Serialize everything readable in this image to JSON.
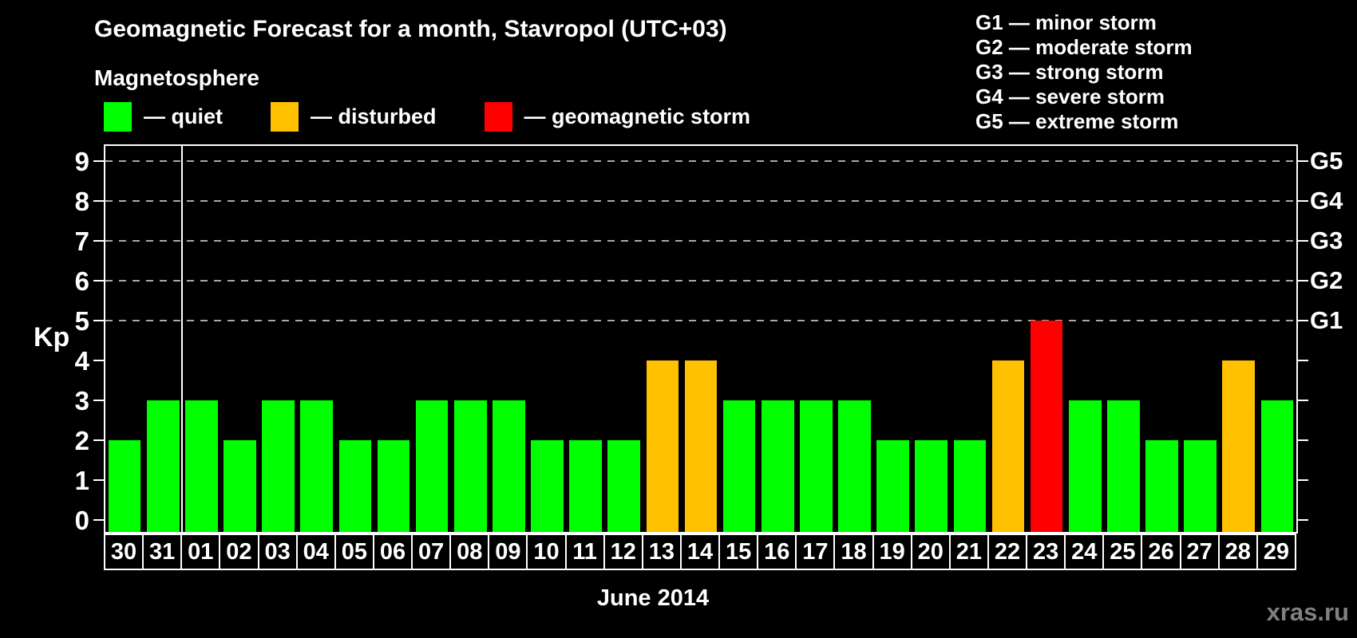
{
  "title": "Geomagnetic Forecast for a month, Stavropol (UTC+03)",
  "subtitle": "Magnetosphere",
  "magnetosphere_legend": [
    {
      "status": "quiet",
      "color": "#00FF00",
      "label": "— quiet"
    },
    {
      "status": "disturbed",
      "color": "#FFC000",
      "label": "— disturbed"
    },
    {
      "status": "storm",
      "color": "#FF0000",
      "label": "— geomagnetic storm"
    }
  ],
  "storm_scale_legend": [
    "G1 — minor storm",
    "G2 — moderate storm",
    "G3 — strong storm",
    "G4 — severe storm",
    "G5 — extreme storm"
  ],
  "watermark": "xras.ru",
  "chart_data": {
    "type": "bar",
    "title": "Geomagnetic Forecast for a month, Stavropol (UTC+03)",
    "xlabel": "June 2014",
    "ylabel": "Kp",
    "ylim": [
      0,
      9
    ],
    "yticks": [
      0,
      1,
      2,
      3,
      4,
      5,
      6,
      7,
      8,
      9
    ],
    "grid": "horizontal dashed lines at Kp 5-9 (G1-G5 levels)",
    "gridlines_at": [
      5,
      6,
      7,
      8,
      9
    ],
    "right_axis_labels": [
      {
        "value": 5,
        "label": "G1"
      },
      {
        "value": 6,
        "label": "G2"
      },
      {
        "value": 7,
        "label": "G3"
      },
      {
        "value": 8,
        "label": "G4"
      },
      {
        "value": 9,
        "label": "G5"
      }
    ],
    "month_separator_after_index": 1,
    "categories": [
      "30",
      "31",
      "01",
      "02",
      "03",
      "04",
      "05",
      "06",
      "07",
      "08",
      "09",
      "10",
      "11",
      "12",
      "13",
      "14",
      "15",
      "16",
      "17",
      "18",
      "19",
      "20",
      "21",
      "22",
      "23",
      "24",
      "25",
      "26",
      "27",
      "28",
      "29"
    ],
    "values": [
      2,
      3,
      3,
      2,
      3,
      3,
      2,
      2,
      3,
      3,
      3,
      2,
      2,
      2,
      4,
      4,
      3,
      3,
      3,
      3,
      2,
      2,
      2,
      4,
      5,
      3,
      3,
      2,
      2,
      4,
      3
    ],
    "statuses": [
      "quiet",
      "quiet",
      "quiet",
      "quiet",
      "quiet",
      "quiet",
      "quiet",
      "quiet",
      "quiet",
      "quiet",
      "quiet",
      "quiet",
      "quiet",
      "quiet",
      "disturbed",
      "disturbed",
      "quiet",
      "quiet",
      "quiet",
      "quiet",
      "quiet",
      "quiet",
      "quiet",
      "disturbed",
      "storm",
      "quiet",
      "quiet",
      "quiet",
      "quiet",
      "disturbed",
      "quiet"
    ],
    "colors": {
      "quiet": "#00FF00",
      "disturbed": "#FFC000",
      "storm": "#FF0000"
    },
    "legend_position": "top"
  }
}
